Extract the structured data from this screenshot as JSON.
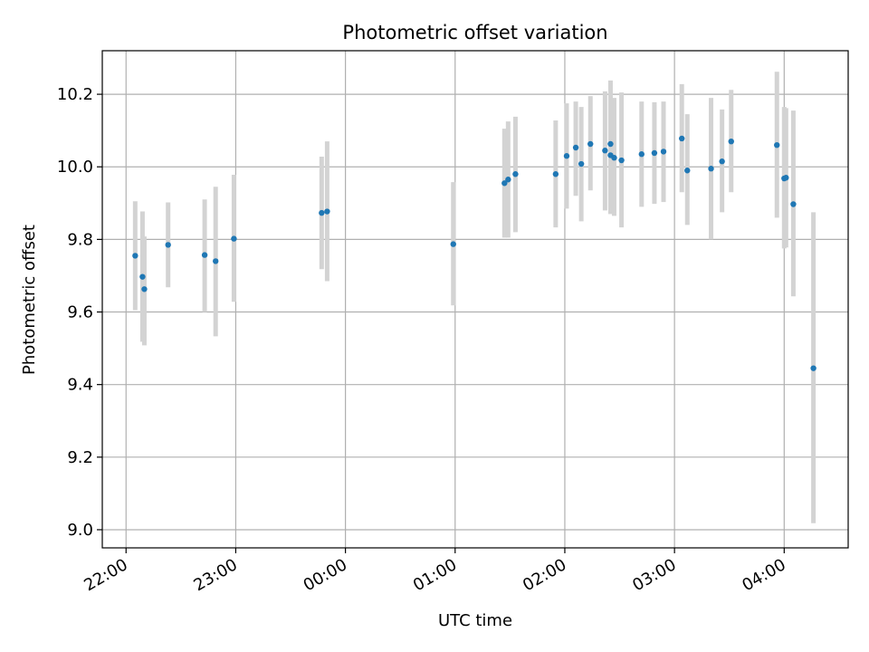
{
  "chart_data": {
    "type": "scatter",
    "title": "Photometric offset variation",
    "xlabel": "UTC time",
    "ylabel": "Photometric offset",
    "x_ticks": [
      "22:00",
      "23:00",
      "00:00",
      "01:00",
      "02:00",
      "03:00",
      "04:00"
    ],
    "x_tick_times": [
      "22:00",
      "23:00",
      "24:00",
      "25:00",
      "26:00",
      "27:00",
      "28:00"
    ],
    "xlim": [
      "21:47",
      "28:35"
    ],
    "y_ticks": [
      "9.0",
      "9.2",
      "9.4",
      "9.6",
      "9.8",
      "10.0",
      "10.2"
    ],
    "ylim": [
      8.95,
      10.32
    ],
    "grid": true,
    "colors": {
      "point": "#1f77b4",
      "errorbar": "#d3d3d3",
      "grid": "#b0b0b0"
    },
    "series": [
      {
        "points": [
          {
            "t": "22:05",
            "y": 9.755,
            "lo": 9.605,
            "hi": 9.905
          },
          {
            "t": "22:09",
            "y": 9.697,
            "lo": 9.518,
            "hi": 9.877
          },
          {
            "t": "22:10",
            "y": 9.663,
            "lo": 9.508,
            "hi": 9.808
          },
          {
            "t": "22:23",
            "y": 9.785,
            "lo": 9.668,
            "hi": 9.902
          },
          {
            "t": "22:43",
            "y": 9.757,
            "lo": 9.6,
            "hi": 9.91
          },
          {
            "t": "22:49",
            "y": 9.74,
            "lo": 9.533,
            "hi": 9.945
          },
          {
            "t": "22:59",
            "y": 9.802,
            "lo": 9.628,
            "hi": 9.978
          },
          {
            "t": "23:47",
            "y": 9.873,
            "lo": 9.718,
            "hi": 10.028
          },
          {
            "t": "23:50",
            "y": 9.877,
            "lo": 9.685,
            "hi": 10.07
          },
          {
            "t": "24:59",
            "y": 9.787,
            "lo": 9.618,
            "hi": 9.958
          },
          {
            "t": "25:27",
            "y": 9.955,
            "lo": 9.805,
            "hi": 10.105
          },
          {
            "t": "25:29",
            "y": 9.965,
            "lo": 9.805,
            "hi": 10.125
          },
          {
            "t": "25:33",
            "y": 9.98,
            "lo": 9.82,
            "hi": 10.138
          },
          {
            "t": "25:55",
            "y": 9.98,
            "lo": 9.833,
            "hi": 10.128
          },
          {
            "t": "26:01",
            "y": 10.03,
            "lo": 9.885,
            "hi": 10.175
          },
          {
            "t": "26:06",
            "y": 10.053,
            "lo": 9.92,
            "hi": 10.18
          },
          {
            "t": "26:09",
            "y": 10.008,
            "lo": 9.85,
            "hi": 10.165
          },
          {
            "t": "26:14",
            "y": 10.063,
            "lo": 9.935,
            "hi": 10.195
          },
          {
            "t": "26:22",
            "y": 10.045,
            "lo": 9.88,
            "hi": 10.208
          },
          {
            "t": "26:25",
            "y": 10.063,
            "lo": 9.885,
            "hi": 10.238
          },
          {
            "t": "26:25",
            "y": 10.032,
            "lo": 9.87,
            "hi": 10.195
          },
          {
            "t": "26:27",
            "y": 10.025,
            "lo": 9.865,
            "hi": 10.19
          },
          {
            "t": "26:31",
            "y": 10.018,
            "lo": 9.833,
            "hi": 10.205
          },
          {
            "t": "26:42",
            "y": 10.035,
            "lo": 9.89,
            "hi": 10.18
          },
          {
            "t": "26:49",
            "y": 10.038,
            "lo": 9.898,
            "hi": 10.178
          },
          {
            "t": "26:54",
            "y": 10.042,
            "lo": 9.903,
            "hi": 10.18
          },
          {
            "t": "27:04",
            "y": 10.078,
            "lo": 9.93,
            "hi": 10.228
          },
          {
            "t": "27:07",
            "y": 9.99,
            "lo": 9.84,
            "hi": 10.145
          },
          {
            "t": "27:20",
            "y": 9.995,
            "lo": 9.8,
            "hi": 10.19
          },
          {
            "t": "27:26",
            "y": 10.015,
            "lo": 9.875,
            "hi": 10.158
          },
          {
            "t": "27:31",
            "y": 10.07,
            "lo": 9.93,
            "hi": 10.212
          },
          {
            "t": "27:56",
            "y": 10.06,
            "lo": 9.86,
            "hi": 10.262
          },
          {
            "t": "28:00",
            "y": 9.968,
            "lo": 9.775,
            "hi": 10.165
          },
          {
            "t": "28:01",
            "y": 9.97,
            "lo": 9.778,
            "hi": 10.162
          },
          {
            "t": "28:05",
            "y": 9.897,
            "lo": 9.643,
            "hi": 10.155
          },
          {
            "t": "28:16",
            "y": 9.445,
            "lo": 9.018,
            "hi": 9.875
          }
        ]
      }
    ]
  }
}
